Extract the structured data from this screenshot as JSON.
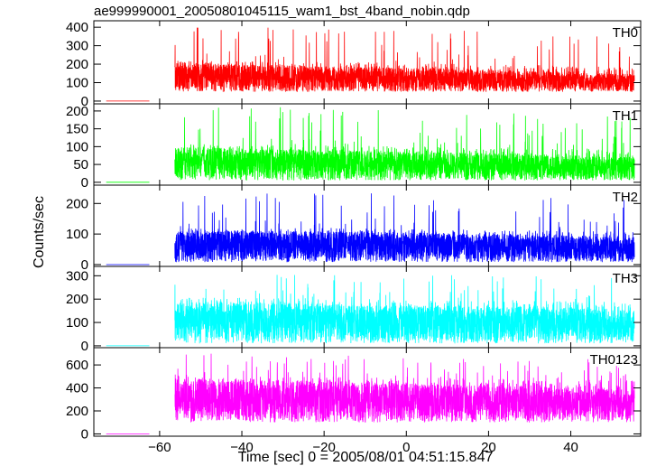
{
  "figure": {
    "title": "ae999990001_20050801045115_wam1_bst_4band_nobin.qdp",
    "xlabel": "Time [sec] 0 = 2005/08/01 04:51:15.847",
    "ylabel": "Counts/sec"
  },
  "chart_data": {
    "type": "line",
    "title": "ae999990001_20050801045115_wam1_bst_4band_nobin.qdp",
    "xlabel": "Time [sec] 0 = 2005/08/01 04:51:15.847",
    "ylabel": "Counts/sec",
    "x_range": [
      -76,
      57
    ],
    "x_ticks": [
      -60,
      -40,
      -20,
      0,
      20,
      40
    ],
    "x_tick_labels": [
      "−60",
      "−40",
      "−20",
      "0",
      "20",
      "40"
    ],
    "pre_burst_segment": [
      -73,
      -62.5
    ],
    "burst_onset": -56.3,
    "burst_end": 55.5,
    "grid": false,
    "legend": "none",
    "panels": [
      {
        "name": "TH0",
        "color": "#ff0000",
        "ylim": [
          -15,
          435
        ],
        "yticks": [
          0,
          100,
          200,
          300,
          400
        ],
        "pre_level": 0,
        "min_level": 50,
        "base_level": 120,
        "band_top": 210,
        "max_level": 430,
        "amplitude_profile": [
          [
            -56,
            1.0
          ],
          [
            -45,
            0.95
          ],
          [
            -30,
            0.9
          ],
          [
            -10,
            0.85
          ],
          [
            10,
            0.8
          ],
          [
            30,
            0.7
          ],
          [
            45,
            0.65
          ],
          [
            55,
            0.6
          ]
        ]
      },
      {
        "name": "TH1",
        "color": "#00ff00",
        "ylim": [
          -8,
          220
        ],
        "yticks": [
          0,
          50,
          100,
          150,
          200
        ],
        "pre_level": 0,
        "min_level": 5,
        "base_level": 55,
        "band_top": 100,
        "max_level": 220,
        "amplitude_profile": [
          [
            -56,
            1.0
          ],
          [
            -40,
            0.95
          ],
          [
            -20,
            0.9
          ],
          [
            0,
            0.85
          ],
          [
            20,
            0.8
          ],
          [
            40,
            0.75
          ],
          [
            55,
            0.7
          ]
        ]
      },
      {
        "name": "TH2",
        "color": "#0000ff",
        "ylim": [
          -6,
          260
        ],
        "yticks": [
          0,
          100,
          200
        ],
        "pre_level": 0,
        "min_level": 8,
        "base_level": 65,
        "band_top": 110,
        "max_level": 240,
        "amplitude_profile": [
          [
            -56,
            1.0
          ],
          [
            -40,
            1.0
          ],
          [
            -20,
            1.0
          ],
          [
            0,
            0.95
          ],
          [
            20,
            0.9
          ],
          [
            40,
            0.85
          ],
          [
            55,
            0.8
          ]
        ]
      },
      {
        "name": "TH3",
        "color": "#00ffff",
        "ylim": [
          -8,
          340
        ],
        "yticks": [
          0,
          100,
          200,
          300
        ],
        "pre_level": 0,
        "min_level": 10,
        "base_level": 100,
        "band_top": 190,
        "max_level": 320,
        "amplitude_profile": [
          [
            -56,
            1.0
          ],
          [
            -40,
            1.0
          ],
          [
            -20,
            0.95
          ],
          [
            0,
            0.9
          ],
          [
            20,
            0.9
          ],
          [
            40,
            0.85
          ],
          [
            55,
            0.8
          ]
        ]
      },
      {
        "name": "TH0123",
        "color": "#ff00ff",
        "ylim": [
          -20,
          750
        ],
        "yticks": [
          0,
          200,
          400,
          600
        ],
        "pre_level": 0,
        "min_level": 100,
        "base_level": 330,
        "band_top": 480,
        "max_level": 700,
        "amplitude_profile": [
          [
            -56,
            1.0
          ],
          [
            -40,
            1.0
          ],
          [
            -20,
            0.95
          ],
          [
            0,
            0.9
          ],
          [
            20,
            0.85
          ],
          [
            40,
            0.8
          ],
          [
            55,
            0.75
          ]
        ]
      }
    ]
  }
}
